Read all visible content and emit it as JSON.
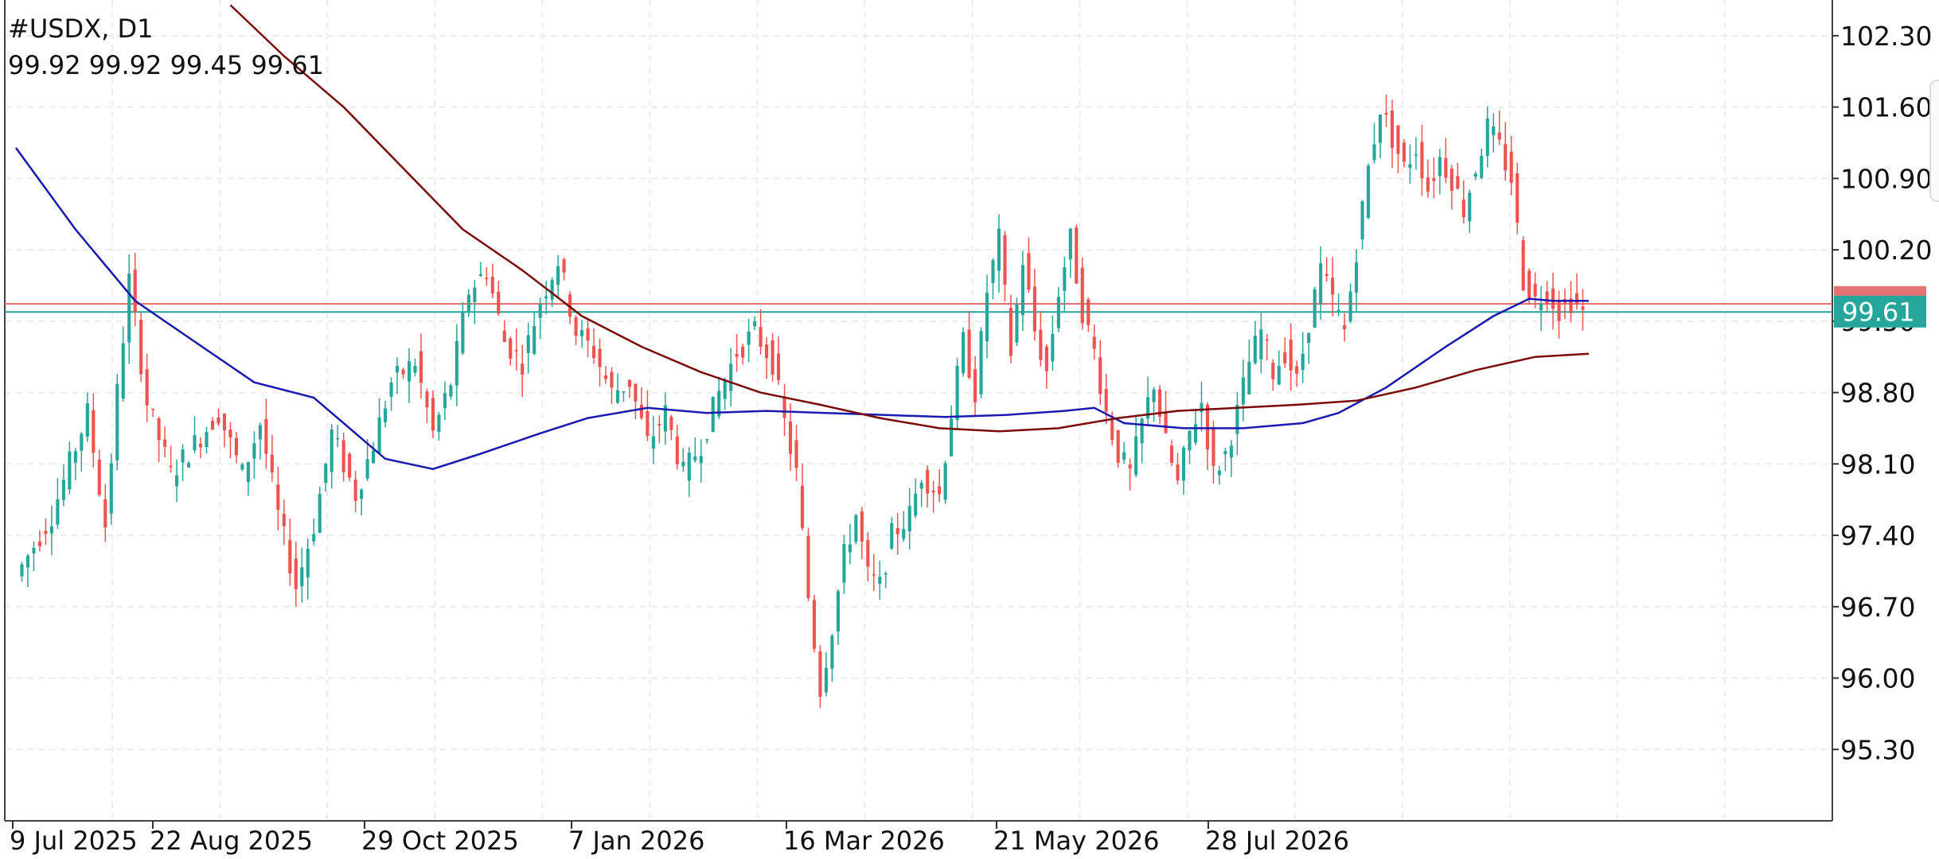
{
  "header": {
    "symbol_label": "#USDX, D1",
    "ohlc_label": "99.92 99.92 99.45 99.61"
  },
  "price_tag": {
    "label": "99.61",
    "color": "#26a69a"
  },
  "colors": {
    "bull": "#26a69a",
    "bear": "#ef5350",
    "ma_fast": "#1a1ab0",
    "ma_slow": "#7a0a0a",
    "grid": "#ececec",
    "bid_line": "#26a69a",
    "ask_line": "#e57373"
  },
  "chart_data": {
    "type": "candlestick",
    "symbol": "#USDX",
    "timeframe": "D1",
    "last_ohlc": {
      "open": 99.92,
      "high": 99.92,
      "low": 99.45,
      "close": 99.61
    },
    "last_price": 99.61,
    "y_axis": {
      "ticks": [
        "102.30",
        "101.60",
        "100.90",
        "100.20",
        "99.50",
        "98.80",
        "98.10",
        "97.40",
        "96.70",
        "96.00",
        "95.30"
      ],
      "range": [
        94.6,
        102.65
      ]
    },
    "x_axis": {
      "ticks": [
        "9 Jul 2025",
        "22 Aug 2025",
        "29 Oct 2025",
        "7 Jan 2026",
        "16 Mar 2026",
        "21 May 2026",
        "28 Jul 2026"
      ]
    },
    "grid": true,
    "close_path": [
      [
        0,
        97.0
      ],
      [
        6,
        97.6
      ],
      [
        12,
        98.6
      ],
      [
        15,
        97.5
      ],
      [
        17,
        98.8
      ],
      [
        19,
        99.9
      ],
      [
        22,
        98.7
      ],
      [
        26,
        98.0
      ],
      [
        30,
        98.3
      ],
      [
        34,
        98.6
      ],
      [
        38,
        98.0
      ],
      [
        41,
        98.5
      ],
      [
        44,
        97.6
      ],
      [
        47,
        96.9
      ],
      [
        50,
        97.5
      ],
      [
        53,
        98.4
      ],
      [
        57,
        97.8
      ],
      [
        60,
        98.3
      ],
      [
        63,
        98.9
      ],
      [
        67,
        99.1
      ],
      [
        70,
        98.4
      ],
      [
        73,
        98.9
      ],
      [
        76,
        99.8
      ],
      [
        79,
        100.0
      ],
      [
        82,
        99.3
      ],
      [
        85,
        99.1
      ],
      [
        88,
        99.7
      ],
      [
        91,
        100.1
      ],
      [
        94,
        99.4
      ],
      [
        97,
        99.2
      ],
      [
        100,
        98.8
      ],
      [
        103,
        98.9
      ],
      [
        106,
        98.3
      ],
      [
        109,
        98.6
      ],
      [
        112,
        98.0
      ],
      [
        115,
        98.3
      ],
      [
        118,
        98.8
      ],
      [
        121,
        99.2
      ],
      [
        124,
        99.4
      ],
      [
        127,
        99.1
      ],
      [
        129,
        98.5
      ],
      [
        131,
        98.0
      ],
      [
        133,
        96.8
      ],
      [
        135,
        95.9
      ],
      [
        137,
        96.5
      ],
      [
        139,
        97.2
      ],
      [
        141,
        97.6
      ],
      [
        143,
        97.0
      ],
      [
        145,
        96.9
      ],
      [
        147,
        97.4
      ],
      [
        150,
        97.6
      ],
      [
        152,
        98.0
      ],
      [
        155,
        97.8
      ],
      [
        157,
        98.6
      ],
      [
        159,
        99.3
      ],
      [
        161,
        98.8
      ],
      [
        163,
        99.8
      ],
      [
        165,
        100.3
      ],
      [
        167,
        99.2
      ],
      [
        169,
        100.1
      ],
      [
        171,
        99.4
      ],
      [
        173,
        99.0
      ],
      [
        175,
        99.8
      ],
      [
        177,
        100.3
      ],
      [
        179,
        99.6
      ],
      [
        181,
        99.2
      ],
      [
        183,
        98.6
      ],
      [
        185,
        98.2
      ],
      [
        187,
        98.0
      ],
      [
        189,
        98.5
      ],
      [
        191,
        98.9
      ],
      [
        193,
        98.3
      ],
      [
        195,
        97.9
      ],
      [
        197,
        98.4
      ],
      [
        199,
        98.7
      ],
      [
        201,
        98.0
      ],
      [
        203,
        98.2
      ],
      [
        205,
        98.6
      ],
      [
        207,
        99.1
      ],
      [
        209,
        99.4
      ],
      [
        211,
        99.0
      ],
      [
        213,
        99.2
      ],
      [
        215,
        98.9
      ],
      [
        217,
        99.5
      ],
      [
        219,
        100.0
      ],
      [
        221,
        99.7
      ],
      [
        223,
        99.4
      ],
      [
        225,
        100.2
      ],
      [
        227,
        101.0
      ],
      [
        229,
        101.6
      ],
      [
        231,
        101.3
      ],
      [
        233,
        101.0
      ],
      [
        235,
        101.2
      ],
      [
        237,
        100.8
      ],
      [
        239,
        101.1
      ],
      [
        241,
        100.9
      ],
      [
        243,
        100.6
      ],
      [
        245,
        101.0
      ],
      [
        247,
        101.4
      ],
      [
        249,
        101.2
      ],
      [
        251,
        100.9
      ],
      [
        253,
        99.9
      ],
      [
        255,
        99.7
      ],
      [
        257,
        99.8
      ],
      [
        259,
        99.6
      ],
      [
        261,
        99.7
      ],
      [
        263,
        99.61
      ]
    ],
    "series": [
      {
        "name": "",
        "type": "moving-average",
        "color": "#1a1ab0",
        "points": [
          [
            0,
            101.2
          ],
          [
            10,
            100.4
          ],
          [
            20,
            99.7
          ],
          [
            30,
            99.3
          ],
          [
            40,
            98.9
          ],
          [
            50,
            98.75
          ],
          [
            55,
            98.5
          ],
          [
            62,
            98.15
          ],
          [
            70,
            98.05
          ],
          [
            78,
            98.2
          ],
          [
            88,
            98.4
          ],
          [
            96,
            98.55
          ],
          [
            106,
            98.65
          ],
          [
            116,
            98.6
          ],
          [
            126,
            98.62
          ],
          [
            136,
            98.6
          ],
          [
            146,
            98.58
          ],
          [
            156,
            98.56
          ],
          [
            166,
            98.58
          ],
          [
            176,
            98.62
          ],
          [
            181,
            98.65
          ],
          [
            186,
            98.5
          ],
          [
            196,
            98.45
          ],
          [
            206,
            98.45
          ],
          [
            216,
            98.5
          ],
          [
            222,
            98.6
          ],
          [
            230,
            98.85
          ],
          [
            240,
            99.25
          ],
          [
            248,
            99.55
          ],
          [
            254,
            99.72
          ],
          [
            258,
            99.7
          ],
          [
            264,
            99.7
          ]
        ]
      },
      {
        "name": "",
        "type": "moving-average",
        "color": "#7a0a0a",
        "points": [
          [
            36,
            102.6
          ],
          [
            45,
            102.1
          ],
          [
            55,
            101.6
          ],
          [
            65,
            101.0
          ],
          [
            75,
            100.4
          ],
          [
            85,
            100.0
          ],
          [
            95,
            99.55
          ],
          [
            105,
            99.25
          ],
          [
            115,
            99.0
          ],
          [
            125,
            98.8
          ],
          [
            135,
            98.68
          ],
          [
            145,
            98.55
          ],
          [
            155,
            98.45
          ],
          [
            165,
            98.42
          ],
          [
            175,
            98.45
          ],
          [
            185,
            98.55
          ],
          [
            195,
            98.62
          ],
          [
            205,
            98.65
          ],
          [
            215,
            98.68
          ],
          [
            225,
            98.72
          ],
          [
            235,
            98.85
          ],
          [
            245,
            99.02
          ],
          [
            255,
            99.15
          ],
          [
            264,
            99.18
          ]
        ]
      }
    ]
  }
}
